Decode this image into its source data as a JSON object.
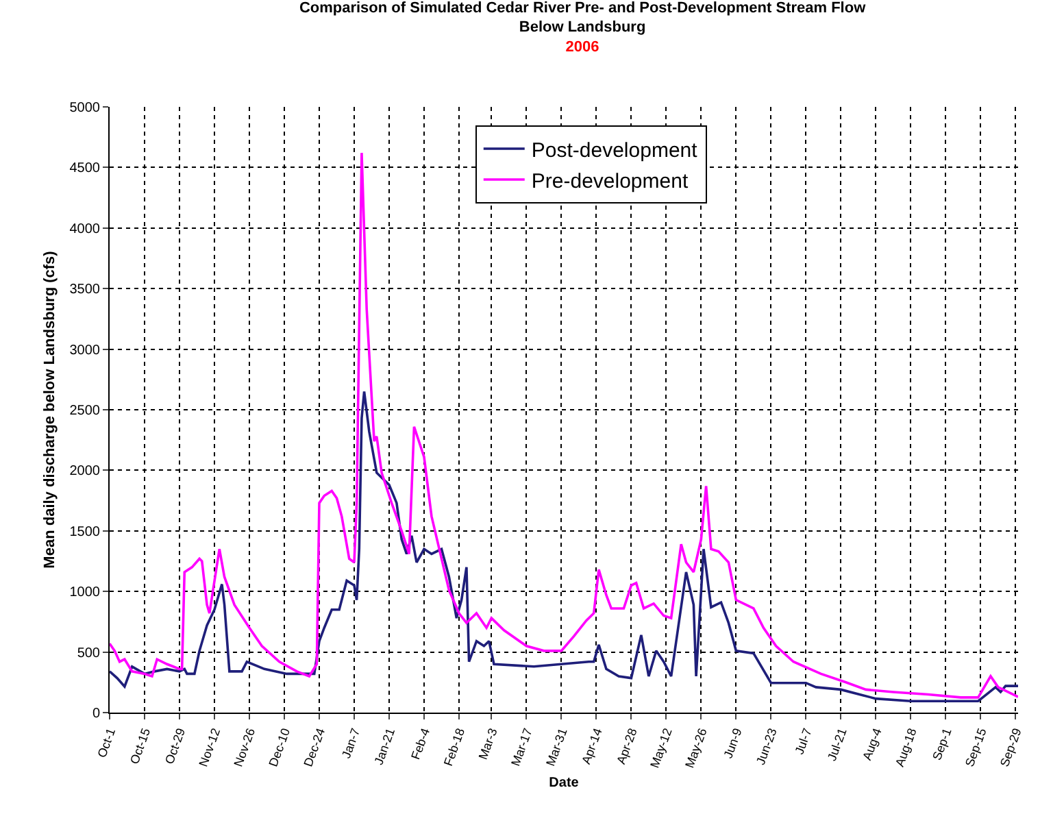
{
  "chart_data": {
    "type": "line",
    "title": "Comparison of Simulated Cedar River Pre- and Post-Development Stream Flow\nBelow Landsburg",
    "subtitle": "2006",
    "xlabel": "Date",
    "ylabel": "Mean daily discharge below Landsburg (cfs)",
    "xlim": [
      "2005-10-01",
      "2006-09-30"
    ],
    "xticks": [
      {
        "value": "2005-10-01",
        "label": "Oct-1"
      },
      {
        "value": "2005-10-15",
        "label": "Oct-15"
      },
      {
        "value": "2005-10-29",
        "label": "Oct-29"
      },
      {
        "value": "2005-11-12",
        "label": "Nov-12"
      },
      {
        "value": "2005-11-26",
        "label": "Nov-26"
      },
      {
        "value": "2005-12-10",
        "label": "Dec-10"
      },
      {
        "value": "2005-12-24",
        "label": "Dec-24"
      },
      {
        "value": "2006-01-07",
        "label": "Jan-7"
      },
      {
        "value": "2006-01-21",
        "label": "Jan-21"
      },
      {
        "value": "2006-02-04",
        "label": "Feb-4"
      },
      {
        "value": "2006-02-18",
        "label": "Feb-18"
      },
      {
        "value": "2006-03-03",
        "label": "Mar-3"
      },
      {
        "value": "2006-03-17",
        "label": "Mar-17"
      },
      {
        "value": "2006-03-31",
        "label": "Mar-31"
      },
      {
        "value": "2006-04-14",
        "label": "Apr-14"
      },
      {
        "value": "2006-04-28",
        "label": "Apr-28"
      },
      {
        "value": "2006-05-12",
        "label": "May-12"
      },
      {
        "value": "2006-05-26",
        "label": "May-26"
      },
      {
        "value": "2006-06-09",
        "label": "Jun-9"
      },
      {
        "value": "2006-06-23",
        "label": "Jun-23"
      },
      {
        "value": "2006-07-07",
        "label": "Jul-7"
      },
      {
        "value": "2006-07-21",
        "label": "Jul-21"
      },
      {
        "value": "2006-08-04",
        "label": "Aug-4"
      },
      {
        "value": "2006-08-18",
        "label": "Aug-18"
      },
      {
        "value": "2006-09-01",
        "label": "Sep-1"
      },
      {
        "value": "2006-09-15",
        "label": "Sep-15"
      },
      {
        "value": "2006-09-29",
        "label": "Sep-29"
      }
    ],
    "ylim": [
      0,
      5000
    ],
    "yticks": [
      0,
      500,
      1000,
      1500,
      2000,
      2500,
      3000,
      3500,
      4000,
      4500,
      5000
    ],
    "grid": true,
    "legend": "top",
    "line_style": "solid",
    "series": [
      {
        "name": "Post-development",
        "color": "#1f1f7a",
        "x": [
          "2005-10-01",
          "2005-10-04",
          "2005-10-07",
          "2005-10-10",
          "2005-10-15",
          "2005-10-19",
          "2005-10-24",
          "2005-10-29",
          "2005-10-31",
          "2005-11-01",
          "2005-11-04",
          "2005-11-06",
          "2005-11-09",
          "2005-11-12",
          "2005-11-15",
          "2005-11-16",
          "2005-11-18",
          "2005-11-23",
          "2005-11-25",
          "2005-12-02",
          "2005-12-11",
          "2005-12-22",
          "2005-12-24",
          "2005-12-26",
          "2005-12-29",
          "2006-01-01",
          "2006-01-04",
          "2006-01-07",
          "2006-01-08",
          "2006-01-09",
          "2006-01-10",
          "2006-01-11",
          "2006-01-13",
          "2006-01-16",
          "2006-01-21",
          "2006-01-24",
          "2006-01-26",
          "2006-01-28",
          "2006-01-30",
          "2006-02-01",
          "2006-02-04",
          "2006-02-07",
          "2006-02-11",
          "2006-02-14",
          "2006-02-17",
          "2006-02-19",
          "2006-02-21",
          "2006-02-22",
          "2006-02-25",
          "2006-02-28",
          "2006-03-02",
          "2006-03-04",
          "2006-03-20",
          "2006-04-11",
          "2006-04-13",
          "2006-04-15",
          "2006-04-18",
          "2006-04-23",
          "2006-04-28",
          "2006-05-02",
          "2006-05-05",
          "2006-05-08",
          "2006-05-11",
          "2006-05-14",
          "2006-05-20",
          "2006-05-23",
          "2006-05-24",
          "2006-05-27",
          "2006-05-30",
          "2006-06-03",
          "2006-06-06",
          "2006-06-09",
          "2006-06-16",
          "2006-06-23",
          "2006-07-07",
          "2006-07-11",
          "2006-07-21",
          "2006-08-04",
          "2006-08-18",
          "2006-09-14",
          "2006-09-21",
          "2006-09-23",
          "2006-09-25",
          "2006-09-30"
        ],
        "values": [
          340,
          285,
          215,
          380,
          320,
          340,
          360,
          340,
          360,
          320,
          320,
          510,
          720,
          850,
          1060,
          890,
          340,
          340,
          420,
          360,
          320,
          320,
          590,
          700,
          850,
          850,
          1090,
          1050,
          930,
          1350,
          2430,
          2650,
          2320,
          1980,
          1880,
          1730,
          1430,
          1310,
          1460,
          1240,
          1350,
          1310,
          1350,
          1120,
          780,
          930,
          1200,
          420,
          590,
          550,
          590,
          400,
          380,
          420,
          420,
          560,
          360,
          300,
          285,
          640,
          300,
          510,
          420,
          300,
          1160,
          890,
          300,
          1350,
          870,
          910,
          740,
          510,
          490,
          245,
          245,
          210,
          190,
          115,
          95,
          95,
          210,
          170,
          220,
          220
        ]
      },
      {
        "name": "Pre-development",
        "color": "#ff00ff",
        "x": [
          "2005-10-01",
          "2005-10-03",
          "2005-10-05",
          "2005-10-07",
          "2005-10-10",
          "2005-10-15",
          "2005-10-18",
          "2005-10-20",
          "2005-10-24",
          "2005-10-29",
          "2005-10-30",
          "2005-10-31",
          "2005-11-03",
          "2005-11-06",
          "2005-11-07",
          "2005-11-09",
          "2005-11-10",
          "2005-11-14",
          "2005-11-16",
          "2005-11-20",
          "2005-11-26",
          "2005-12-01",
          "2005-12-08",
          "2005-12-15",
          "2005-12-20",
          "2005-12-23",
          "2005-12-24",
          "2005-12-26",
          "2005-12-29",
          "2005-12-31",
          "2006-01-02",
          "2006-01-05",
          "2006-01-07",
          "2006-01-08",
          "2006-01-10",
          "2006-01-12",
          "2006-01-15",
          "2006-01-16",
          "2006-01-18",
          "2006-01-22",
          "2006-01-26",
          "2006-01-29",
          "2006-01-31",
          "2006-02-04",
          "2006-02-07",
          "2006-02-11",
          "2006-02-14",
          "2006-02-18",
          "2006-02-21",
          "2006-02-25",
          "2006-03-01",
          "2006-03-03",
          "2006-03-08",
          "2006-03-17",
          "2006-03-24",
          "2006-03-31",
          "2006-04-05",
          "2006-04-10",
          "2006-04-13",
          "2006-04-15",
          "2006-04-18",
          "2006-04-20",
          "2006-04-25",
          "2006-04-28",
          "2006-04-30",
          "2006-05-03",
          "2006-05-07",
          "2006-05-11",
          "2006-05-14",
          "2006-05-18",
          "2006-05-20",
          "2006-05-23",
          "2006-05-26",
          "2006-05-28",
          "2006-05-30",
          "2006-06-02",
          "2006-06-06",
          "2006-06-09",
          "2006-06-16",
          "2006-06-20",
          "2006-06-25",
          "2006-07-02",
          "2006-07-13",
          "2006-07-23",
          "2006-07-31",
          "2006-08-11",
          "2006-08-25",
          "2006-09-07",
          "2006-09-14",
          "2006-09-19",
          "2006-09-22",
          "2006-09-30"
        ],
        "values": [
          570,
          510,
          420,
          440,
          340,
          320,
          300,
          440,
          400,
          360,
          360,
          1160,
          1200,
          1270,
          1250,
          890,
          820,
          1350,
          1120,
          890,
          700,
          550,
          420,
          340,
          300,
          400,
          1730,
          1790,
          1830,
          1770,
          1620,
          1270,
          1240,
          1730,
          4620,
          3330,
          2240,
          2280,
          1980,
          1730,
          1500,
          1310,
          2360,
          2110,
          1620,
          1270,
          1010,
          820,
          740,
          820,
          700,
          780,
          680,
          550,
          510,
          510,
          630,
          760,
          820,
          1180,
          970,
          860,
          860,
          1050,
          1070,
          860,
          900,
          800,
          780,
          1390,
          1240,
          1160,
          1430,
          1870,
          1350,
          1330,
          1240,
          930,
          860,
          700,
          550,
          420,
          320,
          250,
          190,
          170,
          150,
          125,
          125,
          300,
          210,
          130
        ]
      }
    ]
  }
}
